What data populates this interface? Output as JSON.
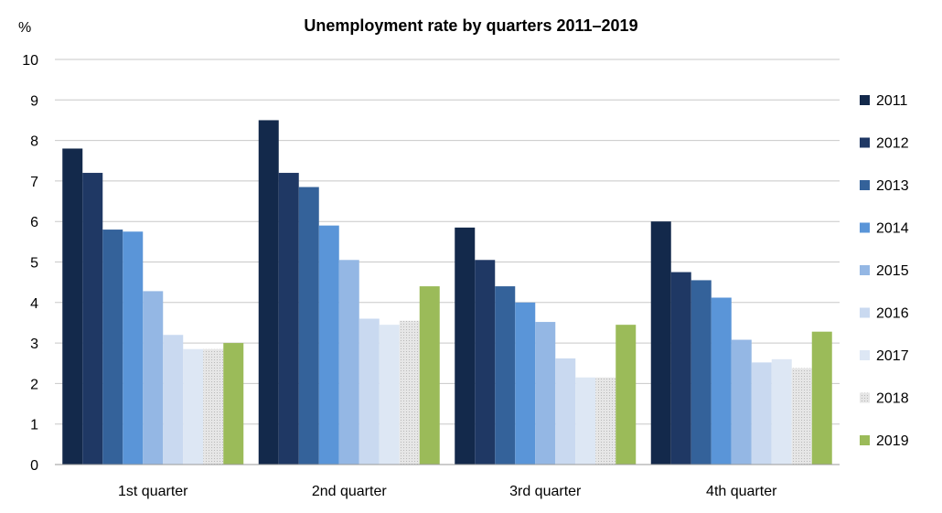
{
  "chart_data": {
    "type": "bar",
    "title": "Unemployment rate by quarters 2011–2019",
    "ylabel": "%",
    "xlabel": "",
    "ylim": [
      0,
      10
    ],
    "yticks": [
      0,
      1,
      2,
      3,
      4,
      5,
      6,
      7,
      8,
      9,
      10
    ],
    "grid": true,
    "legend_position": "right",
    "categories": [
      "1st quarter",
      "2nd quarter",
      "3rd quarter",
      "4th quarter"
    ],
    "series": [
      {
        "name": "2011",
        "color": "#13294b",
        "values": [
          7.8,
          8.5,
          5.85,
          6.0
        ]
      },
      {
        "name": "2012",
        "color": "#1f3864",
        "values": [
          7.2,
          7.2,
          5.05,
          4.75
        ]
      },
      {
        "name": "2013",
        "color": "#34629a",
        "values": [
          5.8,
          6.85,
          4.4,
          4.55
        ]
      },
      {
        "name": "2014",
        "color": "#5a95d8",
        "values": [
          5.75,
          5.9,
          4.0,
          4.12
        ]
      },
      {
        "name": "2015",
        "color": "#94b7e4",
        "values": [
          4.28,
          5.05,
          3.52,
          3.08
        ]
      },
      {
        "name": "2016",
        "color": "#c9d9f0",
        "values": [
          3.2,
          3.6,
          2.62,
          2.52
        ]
      },
      {
        "name": "2017",
        "color": "#dde7f4",
        "values": [
          2.85,
          3.45,
          2.15,
          2.6
        ]
      },
      {
        "name": "2018",
        "color": "#d6d6d6",
        "values": [
          2.85,
          3.55,
          2.15,
          2.38
        ]
      },
      {
        "name": "2019",
        "color": "#9bbb59",
        "values": [
          3.0,
          4.4,
          3.45,
          3.28
        ]
      }
    ]
  }
}
